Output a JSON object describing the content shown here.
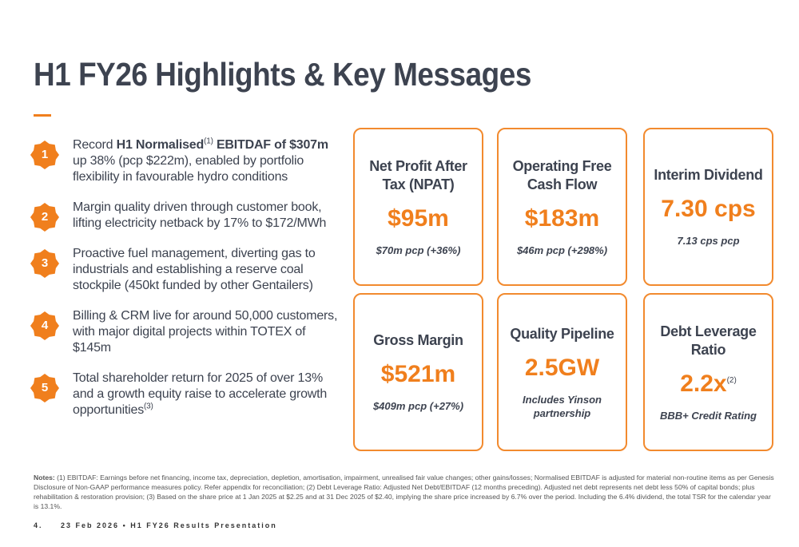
{
  "title": "H1 FY26 Highlights & Key Messages",
  "colors": {
    "accent": "#f07f1d",
    "text": "#3d4350"
  },
  "items": [
    {
      "num": "1",
      "pre": "Record ",
      "bold1": "H1 Normalised",
      "sup": "(1)",
      "bold2": " EBITDAF of $307m",
      "rest": " up 38% (pcp $222m), enabled by portfolio flexibility in favourable hydro conditions"
    },
    {
      "num": "2",
      "text": "Margin quality driven through customer book, lifting electricity netback by 17% to $172/MWh"
    },
    {
      "num": "3",
      "text": "Proactive fuel management, diverting gas to industrials and establishing a reserve coal stockpile (450kt funded by other Gentailers)"
    },
    {
      "num": "4",
      "text": "Billing & CRM live for around 50,000 customers, with major digital projects within TOTEX of $145m"
    },
    {
      "num": "5",
      "text": "Total shareholder return for 2025 of over 13% and a growth equity raise to accelerate growth opportunities",
      "sup": "(3)"
    }
  ],
  "cards": [
    {
      "heading": "Net Profit After Tax (NPAT)",
      "value": "$95m",
      "sub": "$70m pcp (+36%)"
    },
    {
      "heading": "Operating Free Cash Flow",
      "value": "$183m",
      "sub": "$46m pcp (+298%)"
    },
    {
      "heading": "Interim Dividend",
      "value": "7.30 cps",
      "sub": "7.13 cps pcp"
    },
    {
      "heading": "Gross Margin",
      "value": "$521m",
      "sub": "$409m pcp (+27%)"
    },
    {
      "heading": "Quality Pipeline",
      "value": "2.5GW",
      "sub": "Includes Yinson partnership"
    },
    {
      "heading": "Debt Leverage Ratio",
      "value": "2.2x",
      "sup": "(2)",
      "sub": "BBB+ Credit Rating"
    }
  ],
  "notes_label": "Notes:",
  "notes": " (1) EBITDAF: Earnings before net financing, income tax, depreciation, depletion, amortisation, impairment, unrealised fair value changes; other gains/losses; Normalised EBITDAF is adjusted for material non-routine items as per Genesis Disclosure of Non-GAAP performance measures policy. Refer appendix for reconciliation; (2) Debt Leverage Ratio: Adjusted Net Debt/EBITDAF (12 months preceding). Adjusted net debt represents net debt less 50% of capital bonds; plus rehabilitation & restoration provision; (3) Based on the share price at 1 Jan 2025 at $2.25 and at 31 Dec 2025 of $2.40, implying the share price increased by 6.7% over the period. Including the 6.4% dividend, the total TSR for the calendar year is 13.1%.",
  "footer": {
    "page": "4.",
    "text": "23 Feb 2026 • H1 FY26 Results Presentation"
  }
}
